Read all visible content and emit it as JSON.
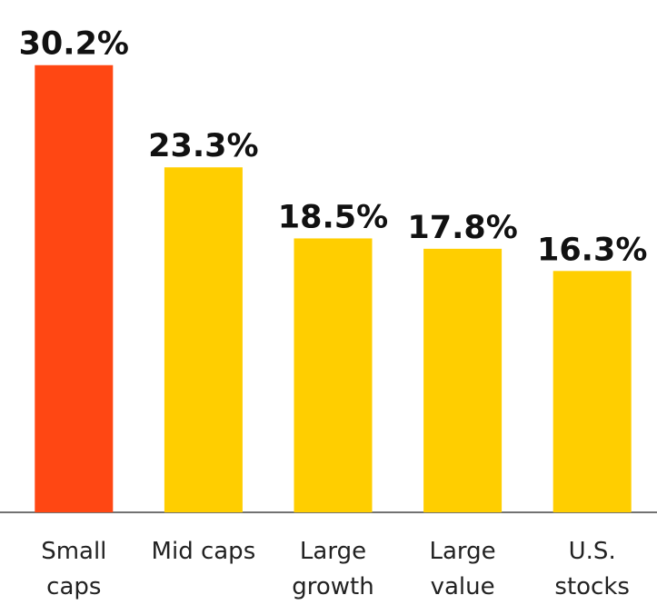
{
  "chart_data": {
    "type": "bar",
    "categories": [
      "Small caps",
      "Mid caps",
      "Large growth",
      "Large value",
      "U.S. stocks"
    ],
    "values": [
      30.2,
      23.3,
      18.5,
      17.8,
      16.3
    ],
    "value_labels": [
      "30.2%",
      "23.3%",
      "18.5%",
      "17.8%",
      "16.3%"
    ],
    "colors": [
      "#ff4713",
      "#ffce00",
      "#ffce00",
      "#ffce00",
      "#ffce00"
    ]
  }
}
